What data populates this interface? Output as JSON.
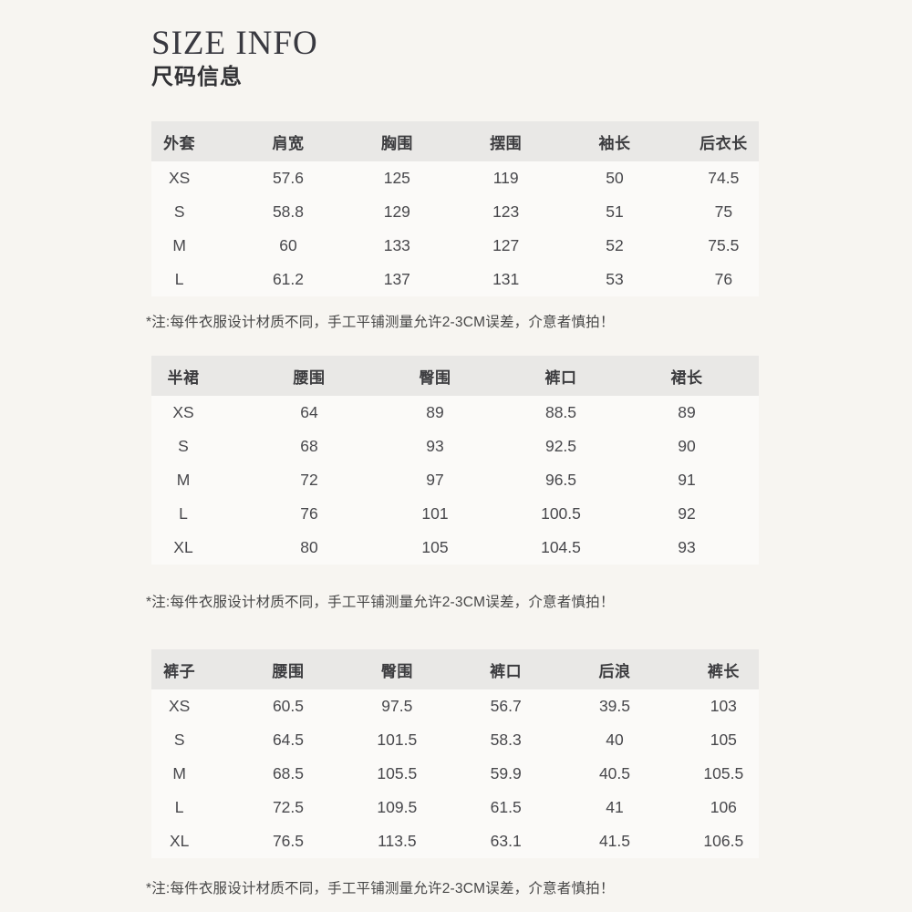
{
  "page": {
    "title_en": "SIZE INFO",
    "title_zh": "尺码信息"
  },
  "colors": {
    "background": "#f7f5f1",
    "table_header_bar": "#e9e8e6",
    "table_body": "#fbfaf8",
    "text": "#3f3f42"
  },
  "chart_data": [
    {
      "type": "table",
      "id": "outerwear",
      "title": "外套",
      "columns": [
        "外套",
        "肩宽",
        "胸围",
        "摆围",
        "袖长",
        "后衣长"
      ],
      "rows": [
        [
          "XS",
          "57.6",
          "125",
          "119",
          "50",
          "74.5"
        ],
        [
          "S",
          "58.8",
          "129",
          "123",
          "51",
          "75"
        ],
        [
          "M",
          "60",
          "133",
          "127",
          "52",
          "75.5"
        ],
        [
          "L",
          "61.2",
          "137",
          "131",
          "53",
          "76"
        ]
      ],
      "note": "*注:每件衣服设计材质不同，手工平铺测量允许2-3CM误差，介意者慎拍！"
    },
    {
      "type": "table",
      "id": "skirt",
      "title": "半裙",
      "columns": [
        "半裙",
        "腰围",
        "臀围",
        "裤口",
        "裙长"
      ],
      "rows": [
        [
          "XS",
          "64",
          "89",
          "88.5",
          "89"
        ],
        [
          "S",
          "68",
          "93",
          "92.5",
          "90"
        ],
        [
          "M",
          "72",
          "97",
          "96.5",
          "91"
        ],
        [
          "L",
          "76",
          "101",
          "100.5",
          "92"
        ],
        [
          "XL",
          "80",
          "105",
          "104.5",
          "93"
        ]
      ],
      "note": "*注:每件衣服设计材质不同，手工平铺测量允许2-3CM误差，介意者慎拍！"
    },
    {
      "type": "table",
      "id": "pants",
      "title": "裤子",
      "columns": [
        "裤子",
        "腰围",
        "臀围",
        "裤口",
        "后浪",
        "裤长"
      ],
      "rows": [
        [
          "XS",
          "60.5",
          "97.5",
          "56.7",
          "39.5",
          "103"
        ],
        [
          "S",
          "64.5",
          "101.5",
          "58.3",
          "40",
          "105"
        ],
        [
          "M",
          "68.5",
          "105.5",
          "59.9",
          "40.5",
          "105.5"
        ],
        [
          "L",
          "72.5",
          "109.5",
          "61.5",
          "41",
          "106"
        ],
        [
          "XL",
          "76.5",
          "113.5",
          "63.1",
          "41.5",
          "106.5"
        ]
      ],
      "note": "*注:每件衣服设计材质不同，手工平铺测量允许2-3CM误差，介意者慎拍！"
    }
  ]
}
